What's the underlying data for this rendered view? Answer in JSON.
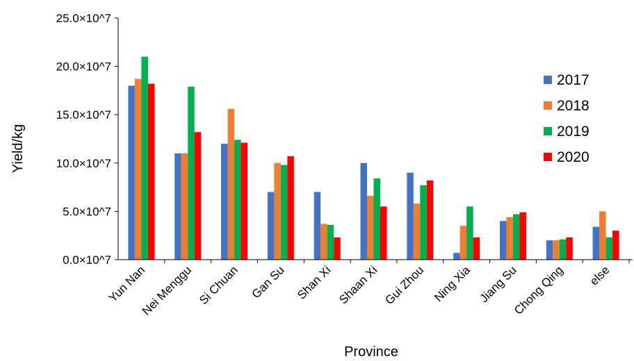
{
  "chart_data": {
    "type": "bar",
    "xlabel": "Province",
    "ylabel": "Yield/kg",
    "ylim": [
      0,
      25
    ],
    "yticks": [
      0,
      5,
      10,
      15,
      20,
      25
    ],
    "ytick_labels": [
      "0.0×10^7",
      "5.0×10^7",
      "10.0×10^7",
      "15.0×10^7",
      "20.0×10^7",
      "25.0×10^7"
    ],
    "categories": [
      "Yun Nan",
      "Nei Menggu",
      "Si Chuan",
      "Gan Su",
      "Shan Xi",
      "Shaan Xi",
      "Gui Zhou",
      "Ning Xia",
      "Jiang Su",
      "Chong Qing",
      "else"
    ],
    "series": [
      {
        "name": "2017",
        "color": "#4472C4",
        "values": [
          18.0,
          11.0,
          12.0,
          7.0,
          7.0,
          10.0,
          9.0,
          0.7,
          4.0,
          2.0,
          3.4
        ]
      },
      {
        "name": "2018",
        "color": "#ED7D31",
        "values": [
          18.7,
          11.0,
          15.6,
          10.0,
          3.7,
          6.6,
          5.8,
          3.5,
          4.4,
          2.0,
          5.0
        ]
      },
      {
        "name": "2019",
        "color": "#00B050",
        "values": [
          21.0,
          17.9,
          12.4,
          9.8,
          3.6,
          8.4,
          7.7,
          5.5,
          4.7,
          2.1,
          2.3
        ]
      },
      {
        "name": "2020",
        "color": "#FF0000",
        "values": [
          18.2,
          13.2,
          12.1,
          10.7,
          2.3,
          5.5,
          8.2,
          2.3,
          4.9,
          2.3,
          3.0
        ]
      }
    ],
    "grid": false,
    "legend_position": "right"
  }
}
